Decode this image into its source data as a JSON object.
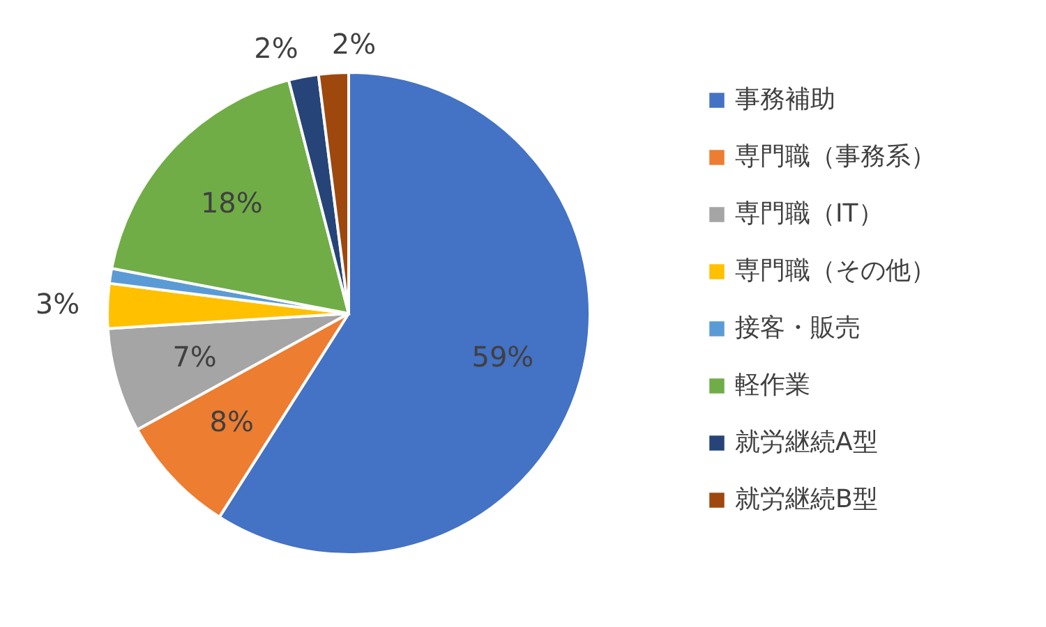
{
  "chart_data": {
    "type": "pie",
    "categories": [
      "事務補助",
      "専門職（事務系）",
      "専門職（IT）",
      "専門職（その他）",
      "接客・販売",
      "軽作業",
      "就労継続A型",
      "就労継続B型"
    ],
    "values": [
      59,
      8,
      7,
      3,
      1,
      18,
      2,
      2
    ],
    "value_labels": [
      "59%",
      "8%",
      "7%",
      "3%",
      null,
      "18%",
      "2%",
      "2%"
    ],
    "colors": [
      "#4472c4",
      "#ed7d31",
      "#a5a5a5",
      "#ffc000",
      "#5b9bd5",
      "#70ad47",
      "#264478",
      "#9e480e"
    ],
    "legend": "right"
  }
}
